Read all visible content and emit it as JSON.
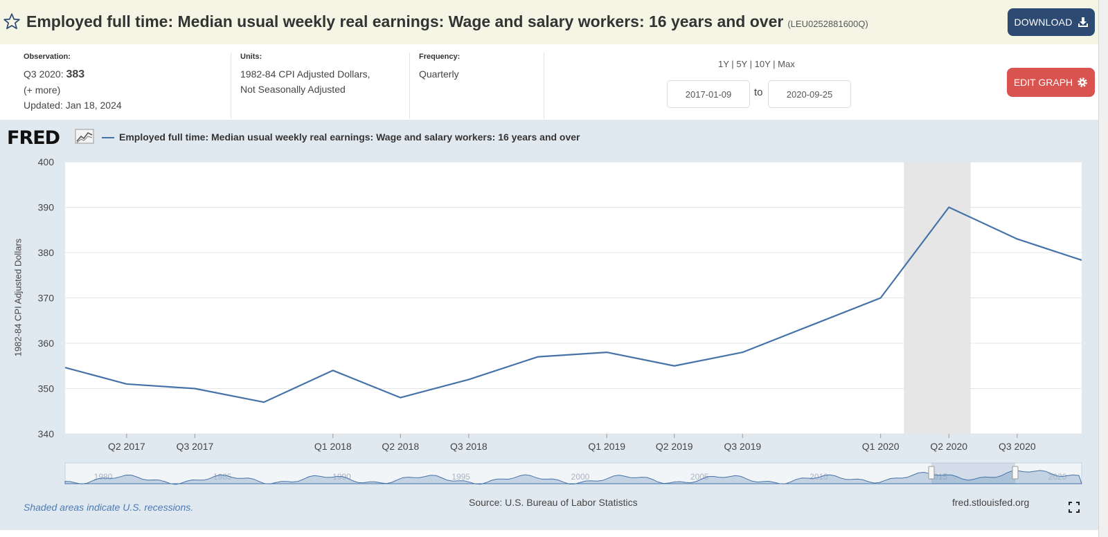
{
  "header": {
    "title": "Employed full time: Median usual weekly real earnings: Wage and salary workers: 16 years and over",
    "series_id": "(LEU0252881600Q)",
    "download_label": "DOWNLOAD",
    "star_icon": "star-outline-icon",
    "download_icon": "download-icon"
  },
  "observation": {
    "label": "Observation:",
    "period": "Q3 2020:",
    "value": "383",
    "more": "(+ more)",
    "updated": "Updated: Jan 18, 2024"
  },
  "units": {
    "label": "Units:",
    "line1": "1982-84 CPI Adjusted Dollars,",
    "line2": "Not Seasonally Adjusted"
  },
  "frequency": {
    "label": "Frequency:",
    "value": "Quarterly"
  },
  "range": {
    "r1y": "1Y",
    "r5y": "5Y",
    "r10y": "10Y",
    "rmax": "Max",
    "sep": "|",
    "start": "2017-01-09",
    "to": "to",
    "end": "2020-09-25"
  },
  "edit_graph_label": "EDIT GRAPH",
  "edit_icon": "gear-icon",
  "logo": "FRED",
  "footer": {
    "note": "Shaded areas indicate U.S. recessions.",
    "source": "Source: U.S. Bureau of Labor Statistics",
    "site": "fred.stlouisfed.org",
    "fullscreen_icon": "fullscreen-icon"
  },
  "colors": {
    "line": "#4572a7",
    "recession": "#e6e6e6",
    "download_button": "#2d4a73",
    "edit_button": "#d9534f",
    "panel": "#e1e9f0"
  },
  "chart_data": {
    "type": "line",
    "title": "",
    "xlabel": "",
    "ylabel": "1982-84 CPI Adjusted Dollars",
    "ylim": [
      340,
      400
    ],
    "y_ticks": [
      340,
      350,
      360,
      370,
      380,
      390,
      400
    ],
    "grid": true,
    "legend_position": "top-left",
    "x_range": [
      "2017-01-09",
      "2020-09-25"
    ],
    "x_tick_labels": [
      "Q2 2017",
      "Q3 2017",
      "Q1 2018",
      "Q2 2018",
      "Q3 2018",
      "Q1 2019",
      "Q2 2019",
      "Q3 2019",
      "Q1 2020",
      "Q2 2020",
      "Q3 2020"
    ],
    "x_tick_dates": [
      "2017-04-01",
      "2017-07-01",
      "2018-01-01",
      "2018-04-01",
      "2018-07-01",
      "2019-01-01",
      "2019-04-01",
      "2019-07-01",
      "2020-01-01",
      "2020-04-01",
      "2020-07-01"
    ],
    "recession": [
      [
        "2020-02-01",
        "2020-04-30"
      ]
    ],
    "series": [
      {
        "name": "Employed full time: Median usual weekly real earnings: Wage and salary workers: 16 years and over",
        "x": [
          "2017-01-01",
          "2017-04-01",
          "2017-07-01",
          "2017-10-01",
          "2018-01-01",
          "2018-04-01",
          "2018-07-01",
          "2018-10-01",
          "2019-01-01",
          "2019-04-01",
          "2019-07-01",
          "2019-10-01",
          "2020-01-01",
          "2020-04-01",
          "2020-07-01",
          "2020-10-01"
        ],
        "values": [
          355,
          351,
          350,
          347,
          354,
          348,
          352,
          357,
          358,
          355,
          358,
          364,
          370,
          390,
          383,
          378
        ]
      }
    ],
    "navigator": {
      "tick_labels": [
        "1980",
        "1985",
        "1990",
        "1995",
        "2000",
        "2005",
        "2010",
        "2015",
        "2020"
      ]
    }
  }
}
